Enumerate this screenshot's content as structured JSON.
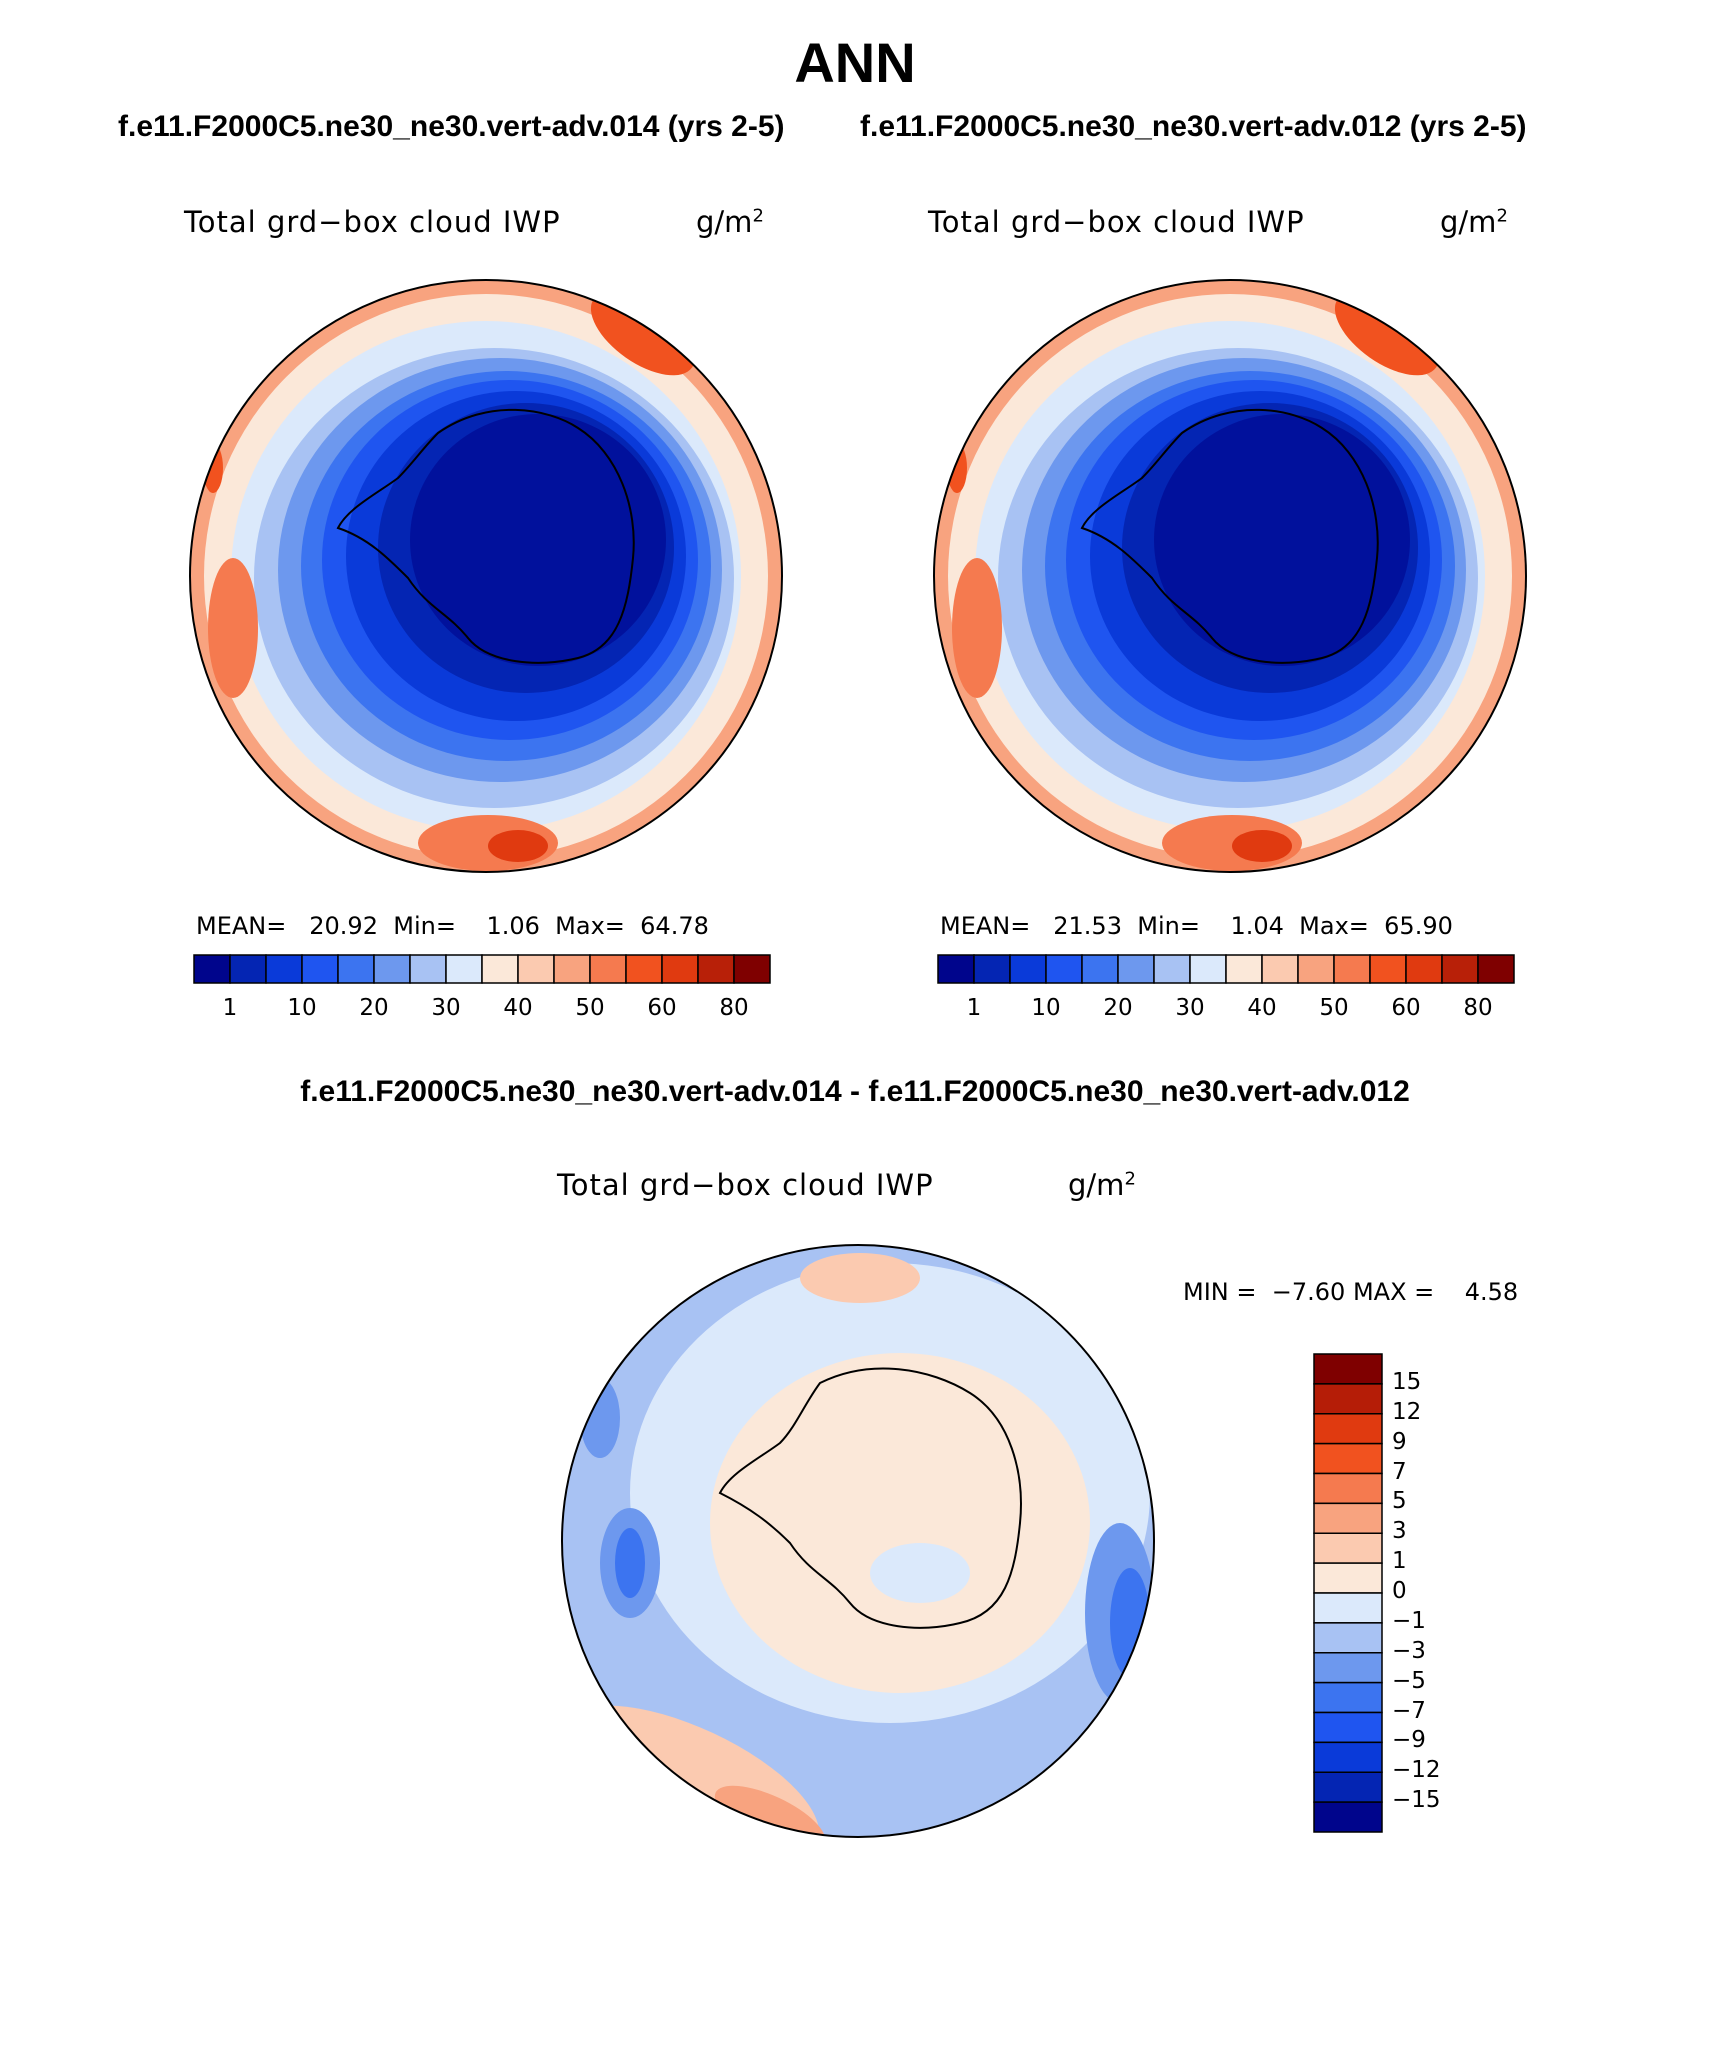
{
  "title": "ANN",
  "panels": [
    {
      "case_title": "f.e11.F2000C5.ne30_ne30.vert-adv.014 (yrs 2-5)",
      "variable": "Total grd−box cloud IWP",
      "unit_base": "g/m",
      "unit_exp": "2",
      "mean_label": "MEAN=",
      "mean": "20.92",
      "min_label": "Min=",
      "min": "1.06",
      "max_label": "Max=",
      "max": "64.78"
    },
    {
      "case_title": "f.e11.F2000C5.ne30_ne30.vert-adv.012 (yrs 2-5)",
      "variable": "Total grd−box cloud IWP",
      "unit_base": "g/m",
      "unit_exp": "2",
      "mean_label": "MEAN=",
      "mean": "21.53",
      "min_label": "Min=",
      "min": "1.04",
      "max_label": "Max=",
      "max": "65.90"
    }
  ],
  "colorbar": {
    "colors": [
      "#00058c",
      "#0425b3",
      "#0a3ad9",
      "#1f55f0",
      "#3c74f0",
      "#6d98ee",
      "#a8c2f3",
      "#dbe9fb",
      "#fbe8d9",
      "#fbcab0",
      "#f8a37f",
      "#f57a4f",
      "#f1521f",
      "#e03a10",
      "#b82008",
      "#7f0000"
    ],
    "ticks": [
      "1",
      "10",
      "20",
      "30",
      "40",
      "50",
      "60",
      "80"
    ]
  },
  "diff": {
    "title": "f.e11.F2000C5.ne30_ne30.vert-adv.014 - f.e11.F2000C5.ne30_ne30.vert-adv.012",
    "variable": "Total grd−box cloud IWP",
    "unit_base": "g/m",
    "unit_exp": "2",
    "min_label": "MIN =",
    "min": "−7.60",
    "max_label": "MAX =",
    "max": "4.58",
    "colorbar": {
      "colors": [
        "#7f0000",
        "#b51d07",
        "#e03a10",
        "#f1521f",
        "#f57a4f",
        "#f8a37f",
        "#fbcab0",
        "#fbe8d9",
        "#dbe9fb",
        "#a8c2f3",
        "#6d98ee",
        "#3c74f0",
        "#1f55f0",
        "#0a3ad9",
        "#0425b3",
        "#00058c"
      ],
      "ticks": [
        "15",
        "12",
        "9",
        "7",
        "5",
        "3",
        "1",
        "0",
        "−1",
        "−3",
        "−5",
        "−7",
        "−9",
        "−12",
        "−15"
      ]
    }
  }
}
